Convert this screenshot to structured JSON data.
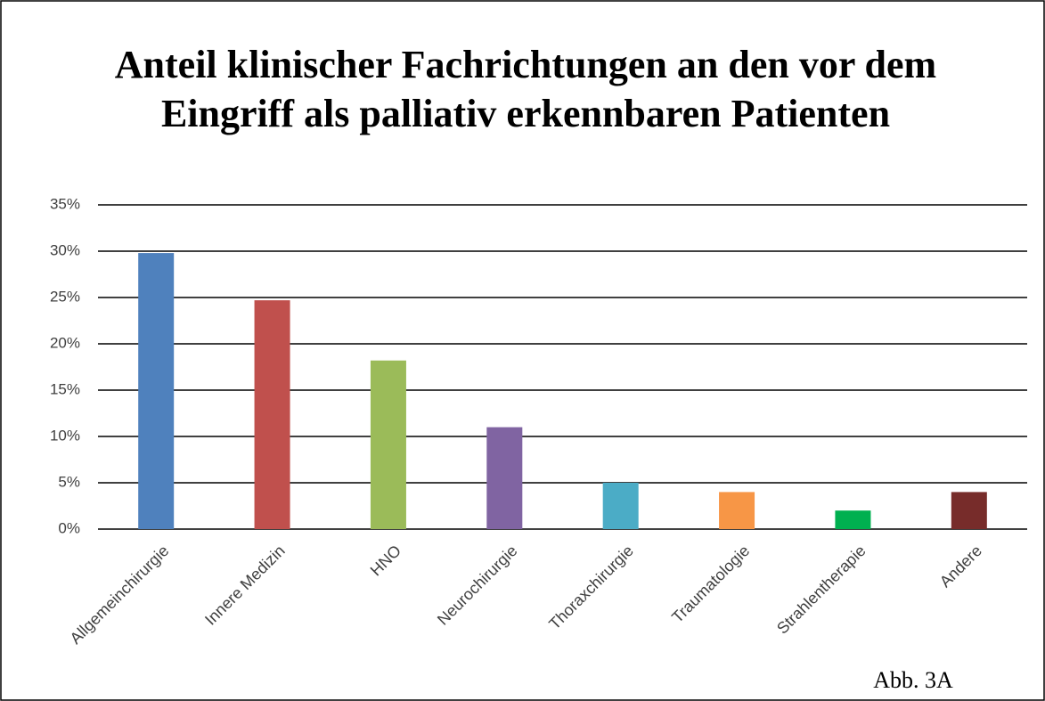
{
  "chart_data": {
    "type": "bar",
    "title": "Anteil klinischer Fachrichtungen an den vor dem Eingriff als palliativ erkennbaren Patienten",
    "categories": [
      "Allgemeinchirurgie",
      "Innere Medizin",
      "HNO",
      "Neurochirurgie",
      "Thoraxchirurgie",
      "Traumatologie",
      "Strahlentherapie",
      "Andere"
    ],
    "values": [
      29.8,
      24.7,
      18.2,
      11.0,
      5.0,
      4.0,
      2.0,
      4.0
    ],
    "colors": [
      "#4f81bd",
      "#c0504d",
      "#9bbb59",
      "#8064a2",
      "#4bacc6",
      "#f79646",
      "#00b050",
      "#772c2a"
    ],
    "ylim": [
      0,
      35
    ],
    "yticks": [
      {
        "value": 0,
        "label": "0%"
      },
      {
        "value": 5,
        "label": "5%"
      },
      {
        "value": 10,
        "label": "10%"
      },
      {
        "value": 15,
        "label": "15%"
      },
      {
        "value": 20,
        "label": "20%"
      },
      {
        "value": 25,
        "label": "25%"
      },
      {
        "value": 30,
        "label": "30%"
      },
      {
        "value": 35,
        "label": "35%"
      }
    ],
    "grid": true,
    "annotation": "Abb. 3A"
  }
}
